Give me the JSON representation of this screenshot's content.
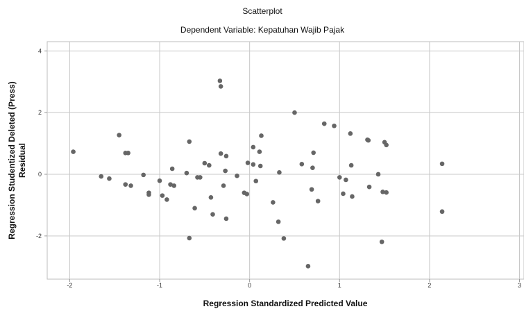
{
  "chart_data": {
    "type": "scatter",
    "title": "Scatterplot",
    "subtitle": "Dependent Variable: Kepatuhan Wajib Pajak",
    "xlabel": "Regression Standardized Predicted Value",
    "ylabel": [
      "Regression Studentized Deleted (Press)",
      "Residual"
    ],
    "xlim": [
      -2.25,
      3.05
    ],
    "ylim": [
      -3.4,
      4.3
    ],
    "xticks": [
      -2,
      -1,
      0,
      1,
      2,
      3
    ],
    "yticks": [
      -2,
      0,
      2,
      4
    ],
    "grid": true,
    "colors": {
      "point": "#666666",
      "grid": "#c8c8c8",
      "frame": "#bdbdbd"
    },
    "points": [
      [
        -1.96,
        0.73
      ],
      [
        -1.65,
        -0.07
      ],
      [
        -1.56,
        -0.14
      ],
      [
        -1.45,
        1.27
      ],
      [
        -1.38,
        0.69
      ],
      [
        -1.35,
        0.69
      ],
      [
        -1.38,
        -0.33
      ],
      [
        -1.32,
        -0.37
      ],
      [
        -1.18,
        -0.02
      ],
      [
        -1.12,
        -0.6
      ],
      [
        -1.12,
        -0.66
      ],
      [
        -1.0,
        -0.21
      ],
      [
        -0.97,
        -0.69
      ],
      [
        -0.92,
        -0.82
      ],
      [
        -0.88,
        -0.33
      ],
      [
        -0.86,
        0.18
      ],
      [
        -0.84,
        -0.37
      ],
      [
        -0.7,
        0.04
      ],
      [
        -0.67,
        1.06
      ],
      [
        -0.67,
        -2.07
      ],
      [
        -0.61,
        -1.1
      ],
      [
        -0.58,
        -0.1
      ],
      [
        -0.55,
        -0.1
      ],
      [
        -0.5,
        0.36
      ],
      [
        -0.45,
        0.29
      ],
      [
        -0.43,
        -0.75
      ],
      [
        -0.41,
        -1.3
      ],
      [
        -0.33,
        3.03
      ],
      [
        -0.32,
        2.85
      ],
      [
        -0.32,
        0.67
      ],
      [
        -0.29,
        -0.37
      ],
      [
        -0.27,
        0.11
      ],
      [
        -0.26,
        0.59
      ],
      [
        -0.26,
        -1.44
      ],
      [
        -0.14,
        -0.05
      ],
      [
        -0.06,
        -0.6
      ],
      [
        -0.03,
        -0.64
      ],
      [
        -0.02,
        0.37
      ],
      [
        0.04,
        0.88
      ],
      [
        0.04,
        0.32
      ],
      [
        0.07,
        -0.22
      ],
      [
        0.11,
        0.73
      ],
      [
        0.12,
        0.27
      ],
      [
        0.13,
        1.25
      ],
      [
        0.26,
        -0.91
      ],
      [
        0.32,
        -1.54
      ],
      [
        0.33,
        0.06
      ],
      [
        0.38,
        -2.08
      ],
      [
        0.5,
        2.0
      ],
      [
        0.58,
        0.33
      ],
      [
        0.65,
        -2.98
      ],
      [
        0.69,
        -0.49
      ],
      [
        0.7,
        0.21
      ],
      [
        0.71,
        0.7
      ],
      [
        0.76,
        -0.87
      ],
      [
        0.83,
        1.64
      ],
      [
        0.94,
        1.57
      ],
      [
        1.0,
        -0.1
      ],
      [
        1.04,
        -0.63
      ],
      [
        1.07,
        -0.18
      ],
      [
        1.12,
        1.32
      ],
      [
        1.13,
        0.29
      ],
      [
        1.14,
        -0.72
      ],
      [
        1.31,
        1.12
      ],
      [
        1.32,
        1.1
      ],
      [
        1.33,
        -0.41
      ],
      [
        1.43,
        0.0
      ],
      [
        1.47,
        -2.19
      ],
      [
        1.48,
        -0.57
      ],
      [
        1.5,
        1.04
      ],
      [
        1.52,
        0.95
      ],
      [
        1.52,
        -0.59
      ],
      [
        2.14,
        0.34
      ],
      [
        2.14,
        -1.21
      ]
    ]
  }
}
